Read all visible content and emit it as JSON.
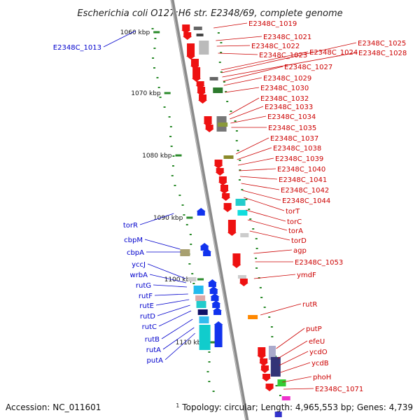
{
  "title": "Escherichia coli O127:H6 str. E2348/69, complete genome",
  "accession": "Accession: NC_011601",
  "topology_sup": "1",
  "topology": "Topology: circular; Length: 4,965,553 bp; Genes: 4,739",
  "colors": {
    "forward_label": "#0000cc",
    "reverse_label": "#cc0000",
    "backbone": "#999999",
    "gc_dots": "#2a8a2a"
  },
  "ticks": [
    {
      "kbp": 1060,
      "label": "1060 kbp"
    },
    {
      "kbp": 1070,
      "label": "1070 kbp"
    },
    {
      "kbp": 1080,
      "label": "1080 kbp"
    },
    {
      "kbp": 1090,
      "label": "1090 kbp"
    },
    {
      "kbp": 1100,
      "label": "1100 kbp"
    },
    {
      "kbp": 1110,
      "label": "1110 kbp"
    }
  ],
  "forward_genes": [
    "E2348C_1013",
    "torR",
    "cbpM",
    "cbpA",
    "yccJ",
    "wrbA",
    "rutG",
    "rutF",
    "rutE",
    "rutD",
    "rutC",
    "rutB",
    "rutA",
    "putA"
  ],
  "reverse_genes": [
    "E2348C_1019",
    "E2348C_1021",
    "E2348C_1022",
    "E2348C_1023",
    "E2348C_1024",
    "E2348C_1025",
    "E2348C_1028",
    "E2348C_1027",
    "E2348C_1029",
    "E2348C_1030",
    "E2348C_1032",
    "E2348C_1033",
    "E2348C_1034",
    "E2348C_1035",
    "E2348C_1037",
    "E2348C_1038",
    "E2348C_1039",
    "E2348C_1040",
    "E2348C_1041",
    "E2348C_1042",
    "E2348C_1044",
    "torT",
    "torC",
    "torA",
    "torD",
    "agp",
    "E2348C_1053",
    "ymdF",
    "rutR",
    "putP",
    "efeU",
    "ycdO",
    "ycdB",
    "phoH",
    "E2348C_1071"
  ]
}
